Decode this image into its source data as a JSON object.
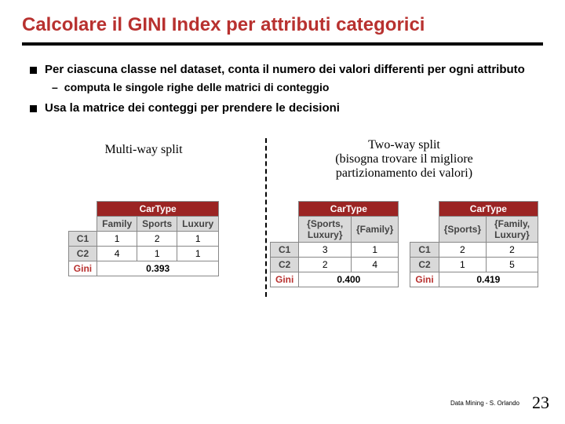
{
  "title": "Calcolare il GINI Index per attributi categorici",
  "bullets": {
    "b1": "Per ciascuna classe nel dataset, conta il numero dei valori differenti per ogni attributo",
    "b1sub": "computa le singole righe delle matrici di conteggio",
    "b2": "Usa la matrice dei conteggi per prendere le decisioni"
  },
  "left_label": "Multi-way split",
  "right_label_l1": "Two-way split",
  "right_label_l2": "(bisogna trovare il migliore",
  "right_label_l3": "partizionamento dei valori)",
  "multi": {
    "title": "CarType",
    "cols": [
      "Family",
      "Sports",
      "Luxury"
    ],
    "r1": [
      "C1",
      "1",
      "2",
      "1"
    ],
    "r2": [
      "C2",
      "4",
      "1",
      "1"
    ],
    "gini_label": "Gini",
    "gini_val": "0.393"
  },
  "two_a": {
    "title": "CarType",
    "cols": [
      "{Sports, Luxury}",
      "{Family}"
    ],
    "r1": [
      "C1",
      "3",
      "1"
    ],
    "r2": [
      "C2",
      "2",
      "4"
    ],
    "gini_label": "Gini",
    "gini_val": "0.400"
  },
  "two_b": {
    "title": "CarType",
    "cols": [
      "{Sports}",
      "{Family, Luxury}"
    ],
    "r1": [
      "C1",
      "2",
      "2"
    ],
    "r2": [
      "C2",
      "1",
      "5"
    ],
    "gini_label": "Gini",
    "gini_val": "0.419"
  },
  "footer_text": "Data Mining - S. Orlando",
  "page_number": "23"
}
